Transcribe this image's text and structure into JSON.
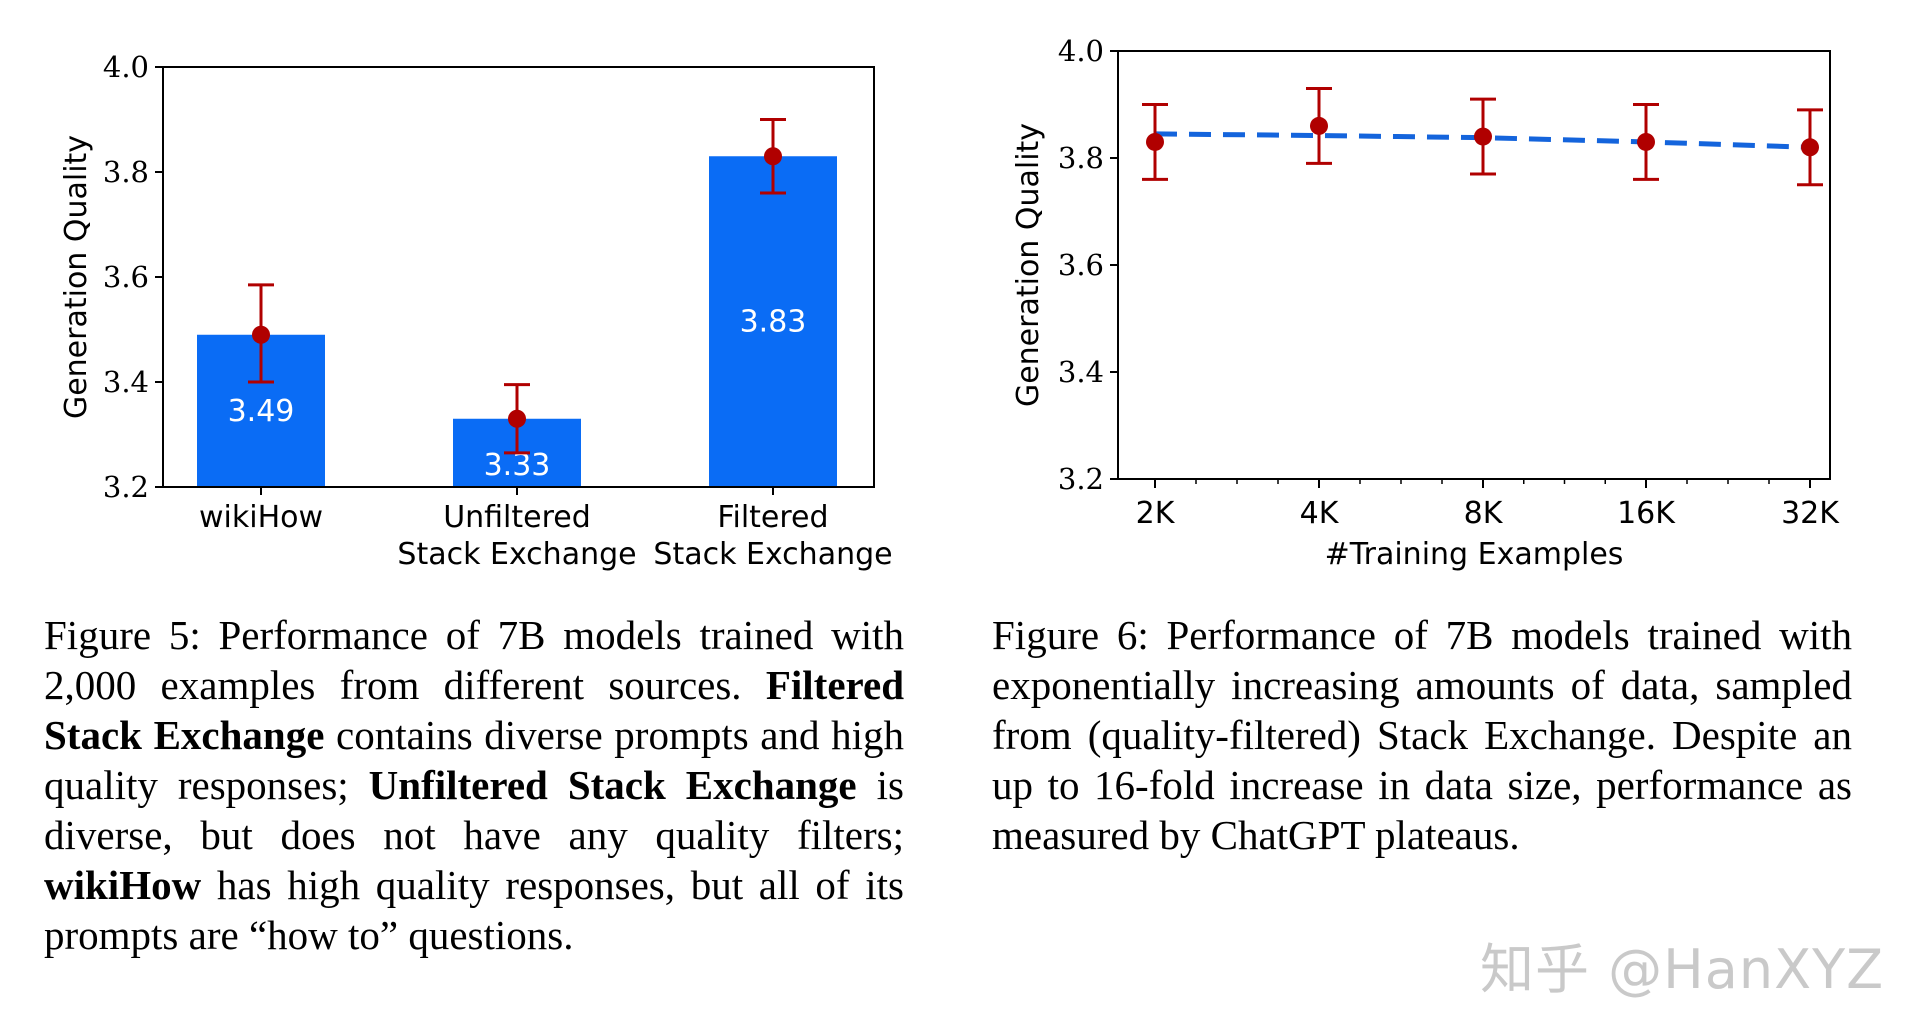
{
  "chart_data": [
    {
      "type": "bar",
      "categories": [
        "wikiHow",
        "Unfiltered\nStack Exchange",
        "Filtered\nStack Exchange"
      ],
      "values": [
        3.49,
        3.33,
        3.83
      ],
      "value_labels": [
        "3.49",
        "3.33",
        "3.83"
      ],
      "error_low": [
        3.4,
        3.265,
        3.76
      ],
      "error_high": [
        3.585,
        3.395,
        3.9
      ],
      "ylabel": "Generation Quality",
      "xlabel": "",
      "ylim": [
        3.2,
        4.0
      ],
      "yticks": [
        "3.2",
        "3.4",
        "3.6",
        "3.8",
        "4.0"
      ],
      "bar_color": "#0a6cf5",
      "error_color": "#b00000"
    },
    {
      "type": "line",
      "categories": [
        "2K",
        "4K",
        "8K",
        "16K",
        "32K"
      ],
      "values": [
        3.83,
        3.86,
        3.84,
        3.83,
        3.82
      ],
      "trend": [
        3.845,
        3.842,
        3.838,
        3.83,
        3.82
      ],
      "error_low": [
        3.76,
        3.79,
        3.77,
        3.76,
        3.75
      ],
      "error_high": [
        3.9,
        3.93,
        3.91,
        3.9,
        3.89
      ],
      "ylabel": "Generation Quality",
      "xlabel": "#Training Examples",
      "ylim": [
        3.2,
        4.0
      ],
      "yticks": [
        "3.2",
        "3.4",
        "3.6",
        "3.8",
        "4.0"
      ],
      "line_color": "#1464dc",
      "point_color": "#b00000"
    }
  ],
  "captions": {
    "fig5": {
      "lead": "Figure 5: Performance of 7B models trained with 2,000 examples from different sources. ",
      "b1": "Filtered Stack Exchange",
      "t1": " contains diverse prompts and high quality responses; ",
      "b2": "Unfiltered Stack Exchange",
      "t2": " is diverse, but does not have any quality filters; ",
      "b3": "wikiHow",
      "t3": " has high quality responses, but all of its prompts are “how to” questions."
    },
    "fig6": {
      "text": "Figure 6: Performance of 7B models trained with exponentially increasing amounts of data, sampled from (quality-filtered) Stack Exchange. Despite an up to 16-fold increase in data size, performance as measured by ChatGPT plateaus."
    }
  },
  "watermark": "知乎 @HanXYZ"
}
